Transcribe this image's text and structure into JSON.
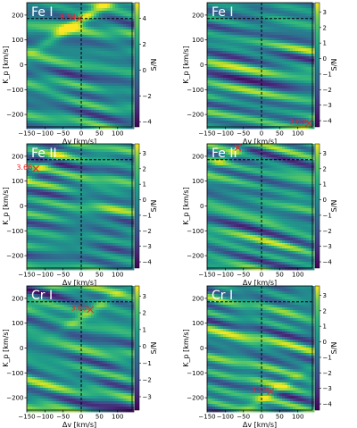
{
  "chart_data": [
    {
      "type": "heatmap",
      "species": "Fe I",
      "xlabel": "Δv [km/s]",
      "ylabel": "K_p [km/s]",
      "cbar_label": "S/N",
      "xlim": [
        -150,
        140
      ],
      "ylim": [
        -250,
        250
      ],
      "xticks": [
        -150,
        -100,
        -50,
        0,
        50,
        100
      ],
      "yticks": [
        -200,
        -100,
        0,
        100,
        200
      ],
      "cbar_range": [
        -4.4,
        5.2
      ],
      "cbar_ticks": [
        -4,
        -2,
        0,
        2,
        4
      ],
      "expected": {
        "dv": 0,
        "kp": 186
      },
      "peak": {
        "dv": -5,
        "kp": 186,
        "snr_label": "5.34"
      }
    },
    {
      "type": "heatmap",
      "species": "Fe I",
      "xlabel": "Δv [km/s]",
      "ylabel": "K_p [km/s]",
      "cbar_label": "S/N",
      "xlim": [
        -150,
        140
      ],
      "ylim": [
        -250,
        250
      ],
      "xticks": [
        -150,
        -100,
        -50,
        0,
        50,
        100
      ],
      "yticks": [
        -200,
        -100,
        0,
        100,
        200
      ],
      "cbar_range": [
        -4.4,
        3.6
      ],
      "cbar_ticks": [
        -4,
        -3,
        -2,
        -1,
        0,
        1,
        2,
        3
      ],
      "expected": {
        "dv": 0,
        "kp": 186
      },
      "peak": {
        "dv": 130,
        "kp": -235,
        "snr_label": "3.60"
      }
    },
    {
      "type": "heatmap",
      "species": "Fe II",
      "xlabel": "Δv [km/s]",
      "ylabel": "K_p [km/s]",
      "cbar_label": "S/N",
      "xlim": [
        -150,
        140
      ],
      "ylim": [
        -250,
        250
      ],
      "xticks": [
        -150,
        -100,
        -50,
        0,
        50,
        100
      ],
      "yticks": [
        -200,
        -100,
        0,
        100,
        200
      ],
      "cbar_range": [
        -4.4,
        3.6
      ],
      "cbar_ticks": [
        -4,
        -3,
        -2,
        -1,
        0,
        1,
        2,
        3
      ],
      "expected": {
        "dv": 0,
        "kp": 186
      },
      "peak": {
        "dv": -125,
        "kp": 150,
        "snr_label": "3.66"
      }
    },
    {
      "type": "heatmap",
      "species": "Fe II",
      "xlabel": "Δv [km/s]",
      "ylabel": "K_p [km/s]",
      "cbar_label": "S/N",
      "xlim": [
        -150,
        140
      ],
      "ylim": [
        -250,
        250
      ],
      "xticks": [
        -150,
        -100,
        -50,
        0,
        50,
        100
      ],
      "yticks": [
        -200,
        -100,
        0,
        100,
        200
      ],
      "cbar_range": [
        -4.4,
        3.6
      ],
      "cbar_ticks": [
        -4,
        -3,
        -2,
        -1,
        0,
        1,
        2,
        3
      ],
      "expected": {
        "dv": 0,
        "kp": 186
      },
      "peak": {
        "dv": -65,
        "kp": 235,
        "snr_label": ""
      }
    },
    {
      "type": "heatmap",
      "species": "Cr I",
      "xlabel": "Δv [km/s]",
      "ylabel": "K_p [km/s]",
      "cbar_label": "S/N",
      "xlim": [
        -150,
        140
      ],
      "ylim": [
        -250,
        250
      ],
      "xticks": [
        -150,
        -100,
        -50,
        0,
        50,
        100
      ],
      "yticks": [
        -200,
        -100,
        0,
        100,
        200
      ],
      "cbar_range": [
        -3.8,
        3.6
      ],
      "cbar_ticks": [
        -3,
        -2,
        -1,
        0,
        1,
        2,
        3
      ],
      "expected": {
        "dv": 0,
        "kp": 186
      },
      "peak": {
        "dv": 25,
        "kp": 155,
        "snr_label": "3.60"
      }
    },
    {
      "type": "heatmap",
      "species": "Cr I",
      "xlabel": "Δv [km/s]",
      "ylabel": "K_p [km/s]",
      "cbar_label": "S/N",
      "xlim": [
        -150,
        140
      ],
      "ylim": [
        -250,
        250
      ],
      "xticks": [
        -150,
        -100,
        -50,
        0,
        50,
        100
      ],
      "yticks": [
        -200,
        -100,
        0,
        100,
        200
      ],
      "cbar_range": [
        -4.4,
        3.6
      ],
      "cbar_ticks": [
        -4,
        -3,
        -2,
        -1,
        0,
        1,
        2,
        3
      ],
      "expected": {
        "dv": 0,
        "kp": 186
      },
      "peak": {
        "dv": 25,
        "kp": -175,
        "snr_label": "3.59"
      }
    }
  ],
  "colors": {
    "colormap": "viridis",
    "marker": "#ff2020",
    "guide_lines": "#000000",
    "title": "#ffffff"
  }
}
